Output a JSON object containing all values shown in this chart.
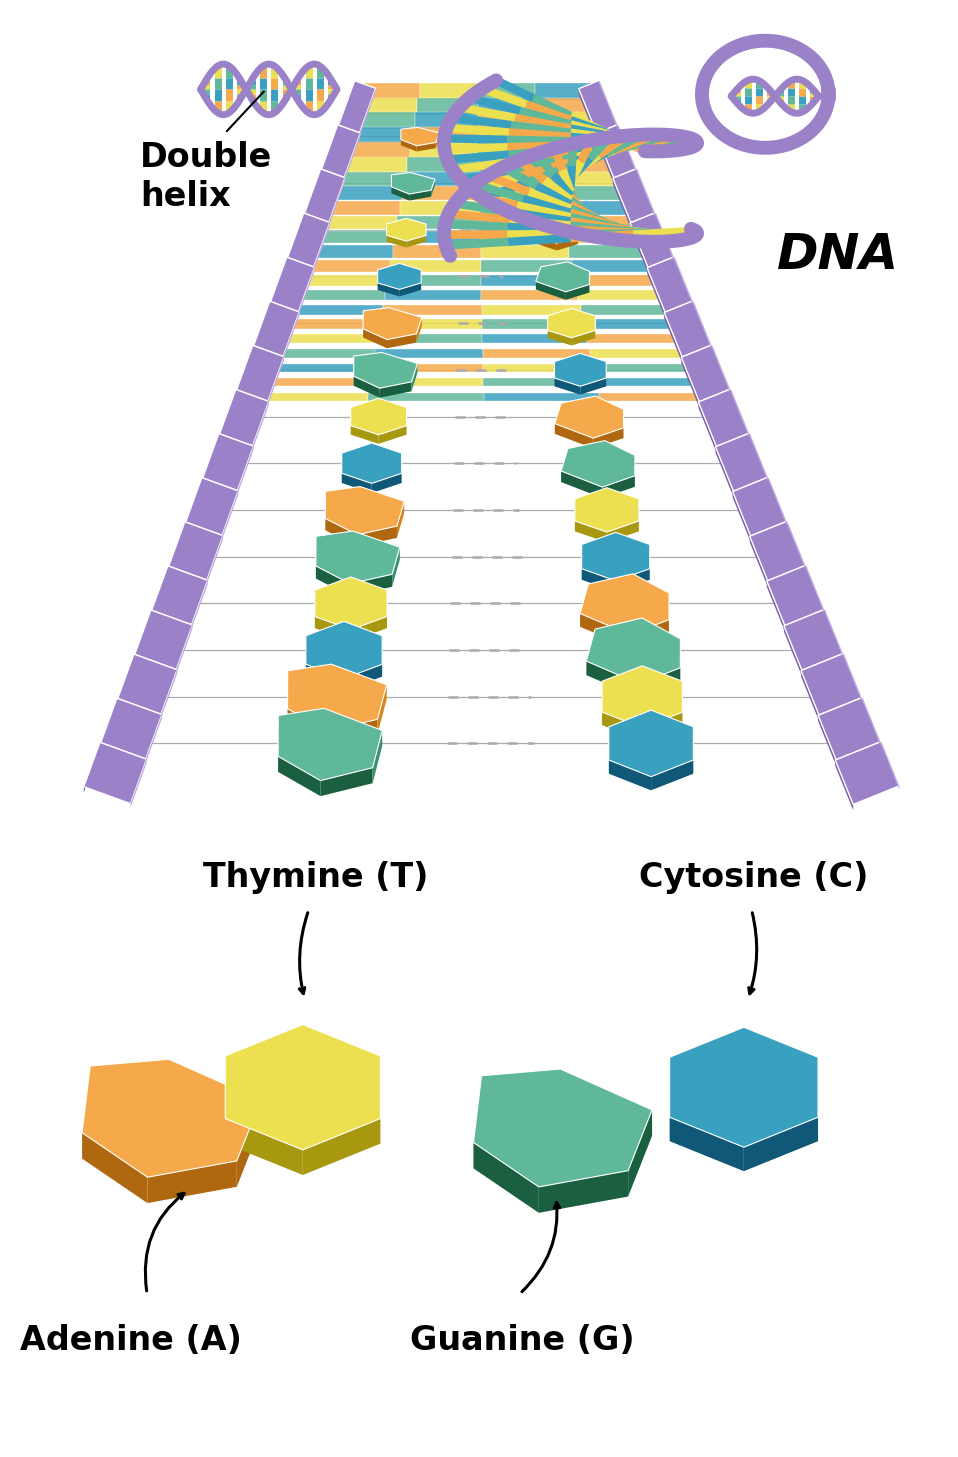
{
  "background_color": "#ffffff",
  "colors": {
    "adenine_top": "#F5A94A",
    "adenine_side": "#D4861A",
    "adenine_dark": "#B06810",
    "thymine_top": "#EDE050",
    "thymine_side": "#C8BC30",
    "thymine_dark": "#A89810",
    "guanine_top": "#60B89A",
    "guanine_side": "#3A9070",
    "guanine_dark": "#1A6040",
    "cytosine_top": "#3AA0C0",
    "cytosine_side": "#1878A0",
    "cytosine_dark": "#105878",
    "backbone_main": "#9B82C8",
    "backbone_light": "#C0AADF",
    "backbone_dark": "#7860A8",
    "connector": "#888888",
    "dashed": "#AAAAAA"
  },
  "label_fontsize": 24,
  "dna_fontsize": 36,
  "double_helix_text": "Double\nhelix",
  "dna_text": "DNA",
  "nucleobase_labels": {
    "adenine": "Adenine (A)",
    "thymine": "Thymine (T)",
    "guanine": "Guanine (G)",
    "cytosine": "Cytosine (C)"
  }
}
